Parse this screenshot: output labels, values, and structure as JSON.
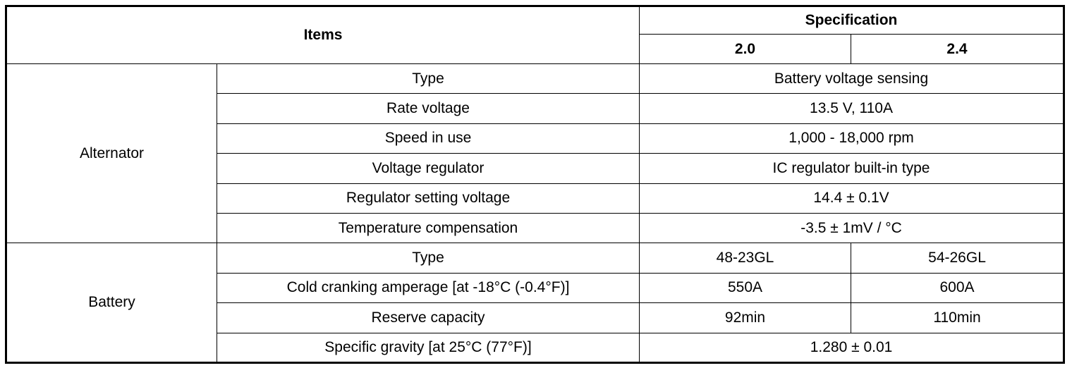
{
  "table": {
    "header": {
      "items": "Items",
      "specification": "Specification",
      "variants": [
        "2.0",
        "2.4"
      ]
    },
    "groups": [
      {
        "name": "Alternator",
        "rows": [
          {
            "item": "Type",
            "values": [
              "Battery voltage sensing"
            ]
          },
          {
            "item": "Rate voltage",
            "values": [
              "13.5 V, 110A"
            ]
          },
          {
            "item": "Speed in use",
            "values": [
              "1,000 - 18,000 rpm"
            ]
          },
          {
            "item": "Voltage regulator",
            "values": [
              "IC regulator built-in type"
            ]
          },
          {
            "item": "Regulator setting voltage",
            "values": [
              "14.4 ± 0.1V"
            ]
          },
          {
            "item": "Temperature compensation",
            "values": [
              "-3.5 ± 1mV / °C"
            ]
          }
        ]
      },
      {
        "name": "Battery",
        "rows": [
          {
            "item": "Type",
            "values": [
              "48-23GL",
              "54-26GL"
            ]
          },
          {
            "item": "Cold cranking amperage [at -18°C (-0.4°F)]",
            "values": [
              "550A",
              "600A"
            ]
          },
          {
            "item": "Reserve capacity",
            "values": [
              "92min",
              "110min"
            ]
          },
          {
            "item": "Specific gravity [at 25°C (77°F)]",
            "values": [
              "1.280 ± 0.01"
            ]
          }
        ]
      }
    ]
  }
}
